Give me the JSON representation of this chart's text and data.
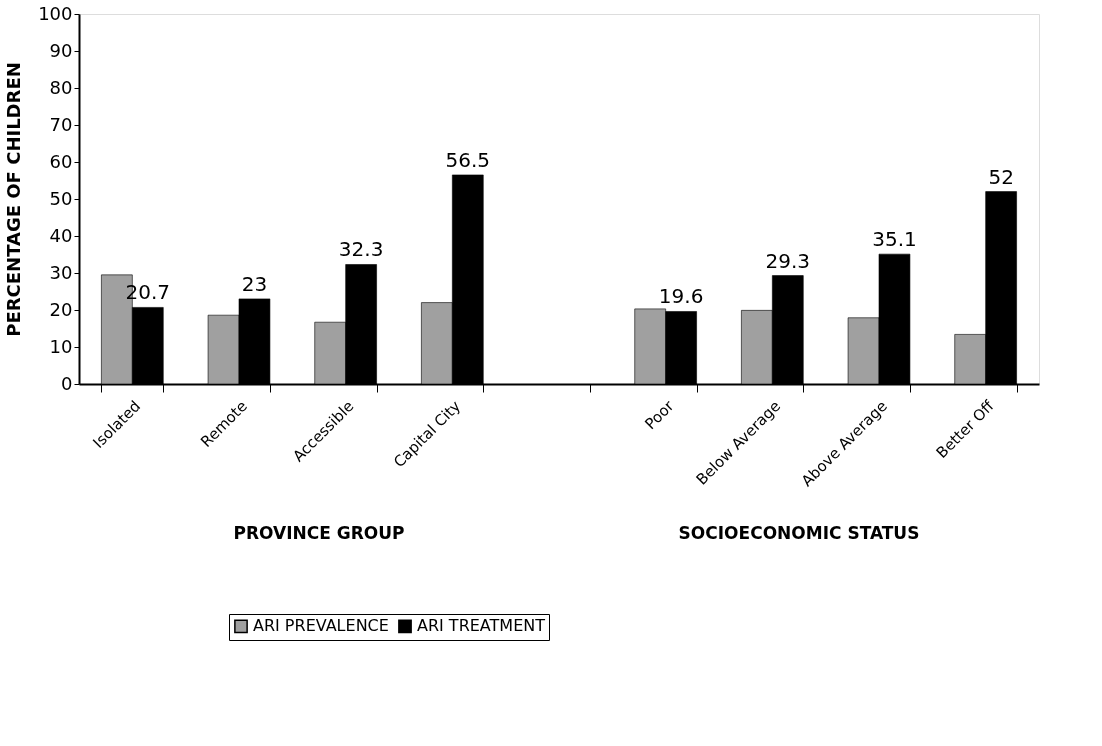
{
  "chart_data": {
    "type": "bar",
    "ylabel": "PERCENTAGE OF CHILDREN",
    "categories": [
      "Isolated",
      "Remote",
      "Accessible",
      "Capital City",
      null,
      "Poor",
      "Below Average",
      "Above Average",
      "Better Off"
    ],
    "series": [
      {
        "name": "ARI PREVALENCE",
        "color": "#a0a0a0",
        "values": [
          29.5,
          18.6,
          16.7,
          22.0,
          null,
          20.3,
          19.9,
          17.9,
          13.4
        ]
      },
      {
        "name": "ARI TREATMENT",
        "color": "#000000",
        "values": [
          20.7,
          23,
          32.3,
          56.5,
          null,
          19.6,
          29.3,
          35.1,
          52
        ],
        "value_labels": [
          "20.7",
          "23",
          "32.3",
          "56.5",
          null,
          "19.6",
          "29.3",
          "35.1",
          "52"
        ]
      }
    ],
    "ylim": [
      0,
      100
    ],
    "yticks": [
      0,
      10,
      20,
      30,
      40,
      50,
      60,
      70,
      80,
      90,
      100
    ],
    "annotations": [
      "PROVINCE GROUP",
      "SOCIOECONOMIC STATUS"
    ],
    "grid": false,
    "legend": "bottom left"
  }
}
